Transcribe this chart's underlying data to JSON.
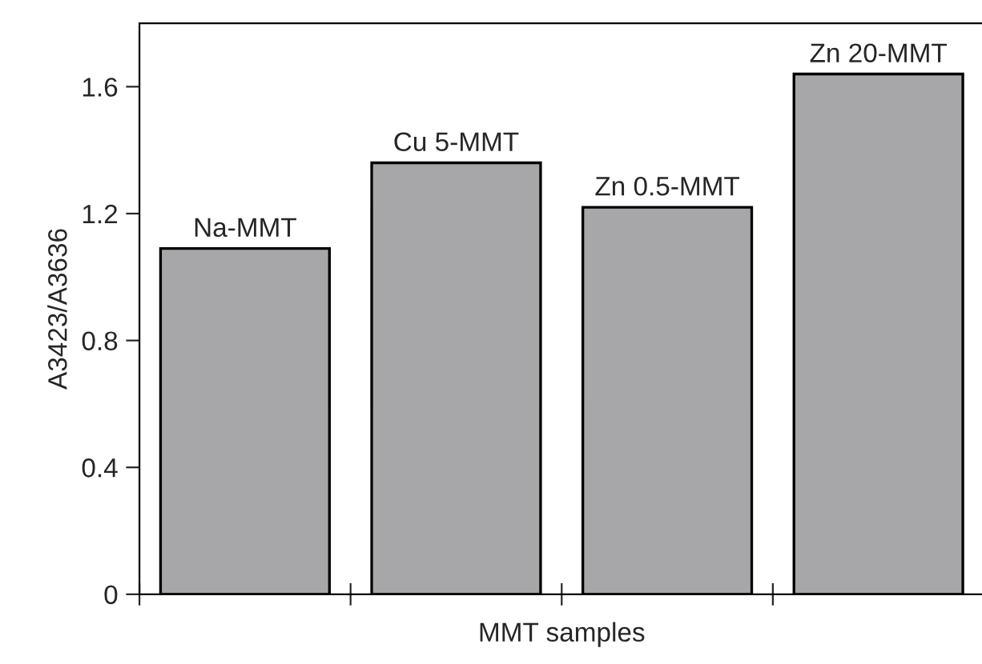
{
  "chart_data": {
    "type": "bar",
    "xlabel": "MMT samples",
    "ylabel": "A3423/A3636",
    "categories": [
      "Na-MMT",
      "Cu 5-MMT",
      "Zn 0.5-MMT",
      "Zn 20-MMT"
    ],
    "values": [
      1.09,
      1.36,
      1.22,
      1.64
    ],
    "color": "#a7a7a9",
    "ylim": [
      0,
      1.8
    ],
    "yticks": [
      0,
      {
        "value": 0.4,
        "label": "0.4"
      },
      {
        "value": 0.8,
        "label": "0.8"
      },
      {
        "value": 1.2,
        "label": "1.2"
      },
      {
        "value": 1.6,
        "label": "1.6"
      }
    ],
    "grid": false,
    "legend": false
  }
}
